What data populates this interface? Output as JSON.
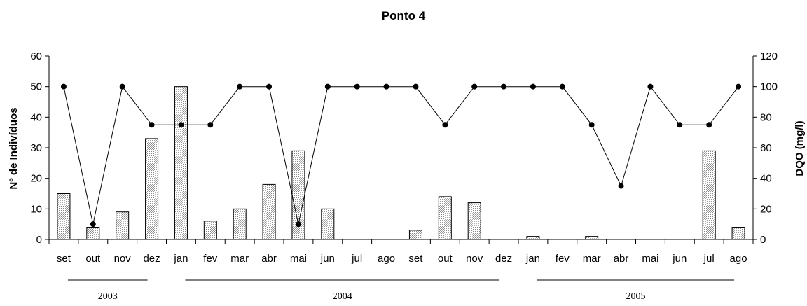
{
  "chart_data": {
    "type": "bar+line",
    "title": "Ponto 4",
    "categories": [
      "set",
      "out",
      "nov",
      "dez",
      "jan",
      "fev",
      "mar",
      "abr",
      "mai",
      "jun",
      "jul",
      "ago",
      "set",
      "out",
      "nov",
      "dez",
      "jan",
      "fev",
      "mar",
      "abr",
      "mai",
      "jun",
      "jul",
      "ago"
    ],
    "year_groups": [
      {
        "label": "2003",
        "months": 4
      },
      {
        "label": "2004",
        "months": 12
      },
      {
        "label": "2005",
        "months": 8
      }
    ],
    "y_left": {
      "label": "Nº de Indivíduos",
      "ylim": [
        0,
        60
      ],
      "ticks": [
        "0",
        "10",
        "20",
        "30",
        "40",
        "50",
        "60"
      ]
    },
    "y_right": {
      "label": "DQO (mg/l)",
      "ylim": [
        0,
        120
      ],
      "ticks": [
        "0",
        "20",
        "40",
        "60",
        "80",
        "100",
        "120"
      ]
    },
    "series": [
      {
        "type": "bar",
        "axis": "left",
        "values": [
          15,
          4,
          9,
          33,
          50,
          6,
          10,
          18,
          29,
          10,
          0,
          0,
          3,
          14,
          12,
          0,
          1,
          0,
          1,
          0,
          0,
          0,
          29,
          4
        ]
      },
      {
        "type": "line",
        "axis": "right",
        "values": [
          100,
          10,
          100,
          75,
          75,
          75,
          100,
          100,
          10,
          100,
          100,
          100,
          100,
          75,
          100,
          100,
          100,
          100,
          75,
          35,
          100,
          75,
          75,
          100
        ]
      }
    ],
    "grid": false,
    "legend": "none"
  }
}
